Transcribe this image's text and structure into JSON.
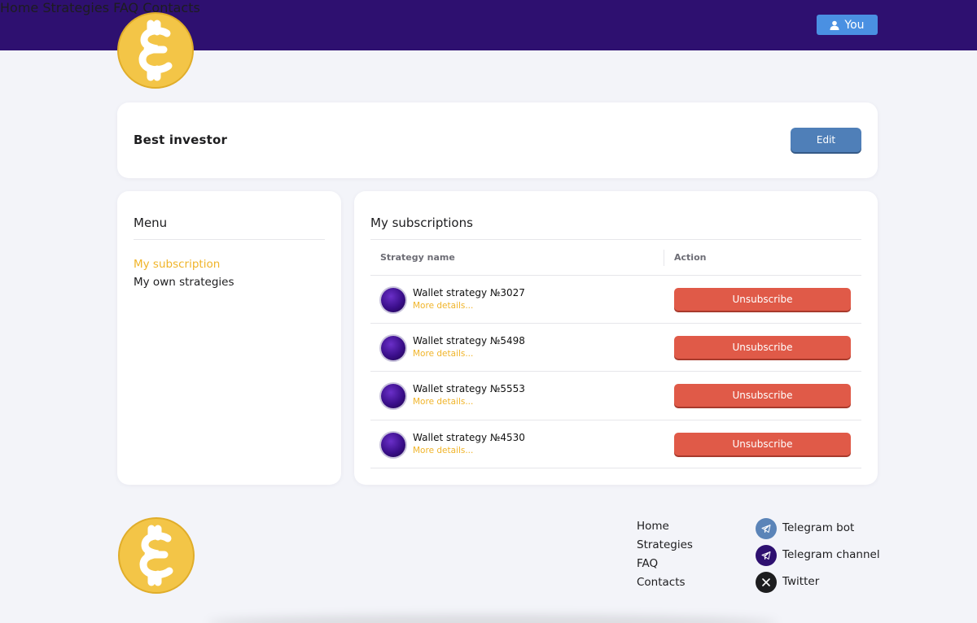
{
  "colors": {
    "header_bg": "#2e1070",
    "accent_yellow": "#f0b429",
    "edit_blue": "#4f7fb8",
    "unsubscribe_red": "#e05a48",
    "you_blue": "#4a90e2"
  },
  "header": {
    "nav": [
      "Home",
      "Strategies",
      "FAQ",
      "Contacts"
    ],
    "user_button": "You"
  },
  "profile": {
    "name": "Best investor",
    "edit_label": "Edit"
  },
  "menu": {
    "title": "Menu",
    "items": [
      "My subscription",
      "My own strategies"
    ]
  },
  "subscriptions": {
    "title": "My subscriptions",
    "columns": [
      "Strategy name",
      "Action"
    ],
    "rows": [
      {
        "name": "Wallet strategy №3027",
        "details": "More details...",
        "action": "Unsubscribe"
      },
      {
        "name": "Wallet strategy №5498",
        "details": "More details...",
        "action": "Unsubscribe"
      },
      {
        "name": "Wallet strategy №5553",
        "details": "More details...",
        "action": "Unsubscribe"
      },
      {
        "name": "Wallet strategy №4530",
        "details": "More details...",
        "action": "Unsubscribe"
      }
    ]
  },
  "footer": {
    "links": [
      "Home",
      "Strategies",
      "FAQ",
      "Contacts"
    ],
    "social": [
      {
        "label": "Telegram bot",
        "icon": "telegram-icon",
        "color": "#5b84b8"
      },
      {
        "label": "Telegram channel",
        "icon": "telegram-icon",
        "color": "#2e1070"
      },
      {
        "label": "Twitter",
        "icon": "x-icon",
        "color": "#1d1d1f"
      }
    ]
  }
}
